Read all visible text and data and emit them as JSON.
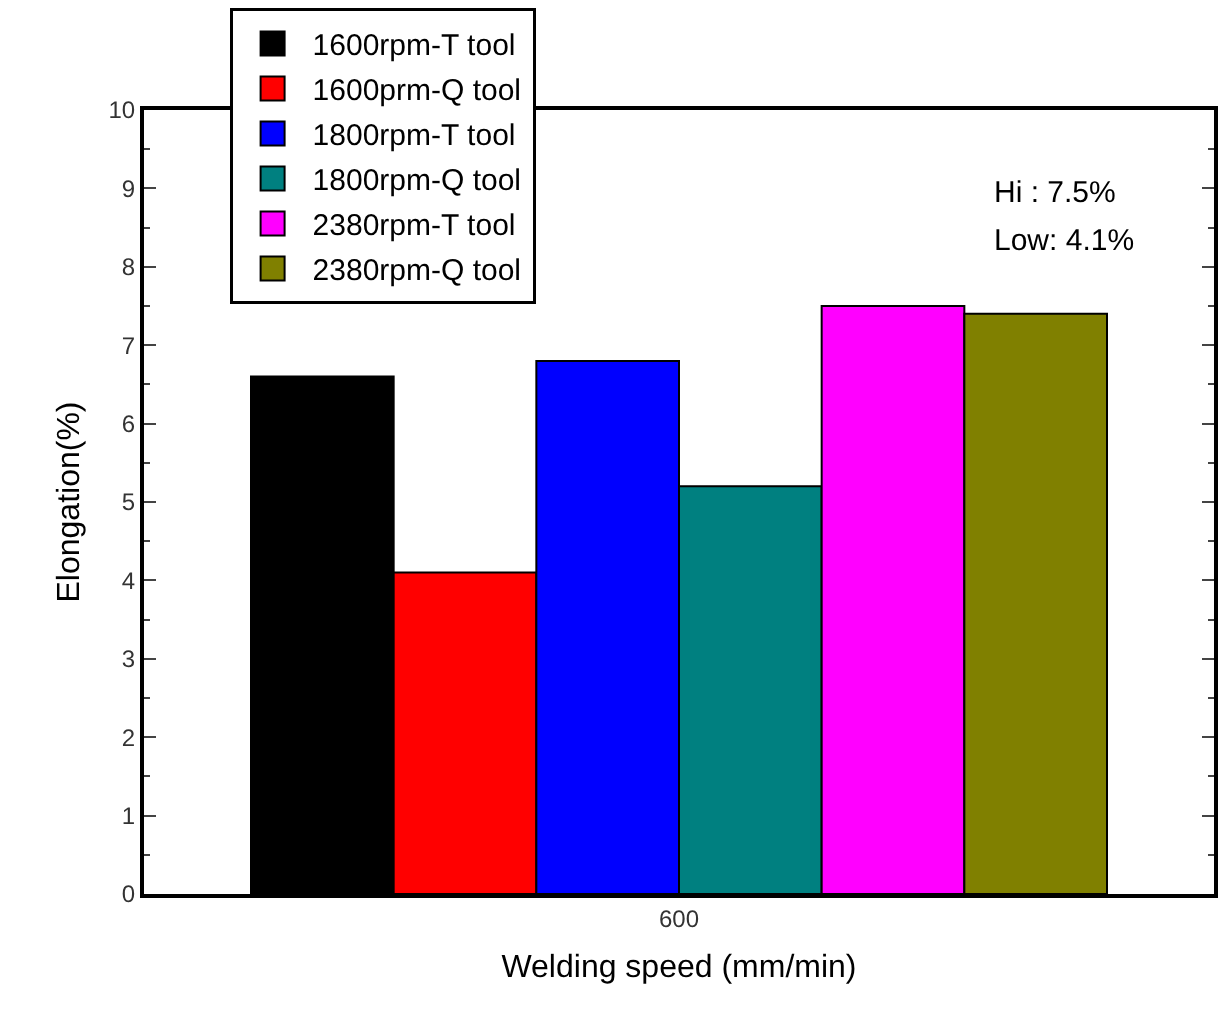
{
  "chart_data": {
    "type": "bar",
    "xlabel": "Welding speed (mm/min)",
    "ylabel": "Elongation(%)",
    "categories": [
      "600"
    ],
    "series": [
      {
        "name": "1600rpm-T tool",
        "color": "#000000",
        "values": [
          6.6
        ]
      },
      {
        "name": "1600prm-Q tool",
        "color": "#ff0000",
        "values": [
          4.1
        ]
      },
      {
        "name": "1800rpm-T tool",
        "color": "#0000ff",
        "values": [
          6.8
        ]
      },
      {
        "name": "1800rpm-Q tool",
        "color": "#008080",
        "values": [
          5.2
        ]
      },
      {
        "name": "2380rpm-T tool",
        "color": "#ff00ff",
        "values": [
          7.5
        ]
      },
      {
        "name": "2380rpm-Q tool",
        "color": "#808000",
        "values": [
          7.4
        ]
      }
    ],
    "ylim": [
      0,
      10
    ],
    "yticks": [
      0,
      1,
      2,
      3,
      4,
      5,
      6,
      7,
      8,
      9,
      10
    ],
    "grid": false,
    "legend": "top left",
    "annotations": [
      "Hi : 7.5%",
      "Low: 4.1%"
    ]
  }
}
